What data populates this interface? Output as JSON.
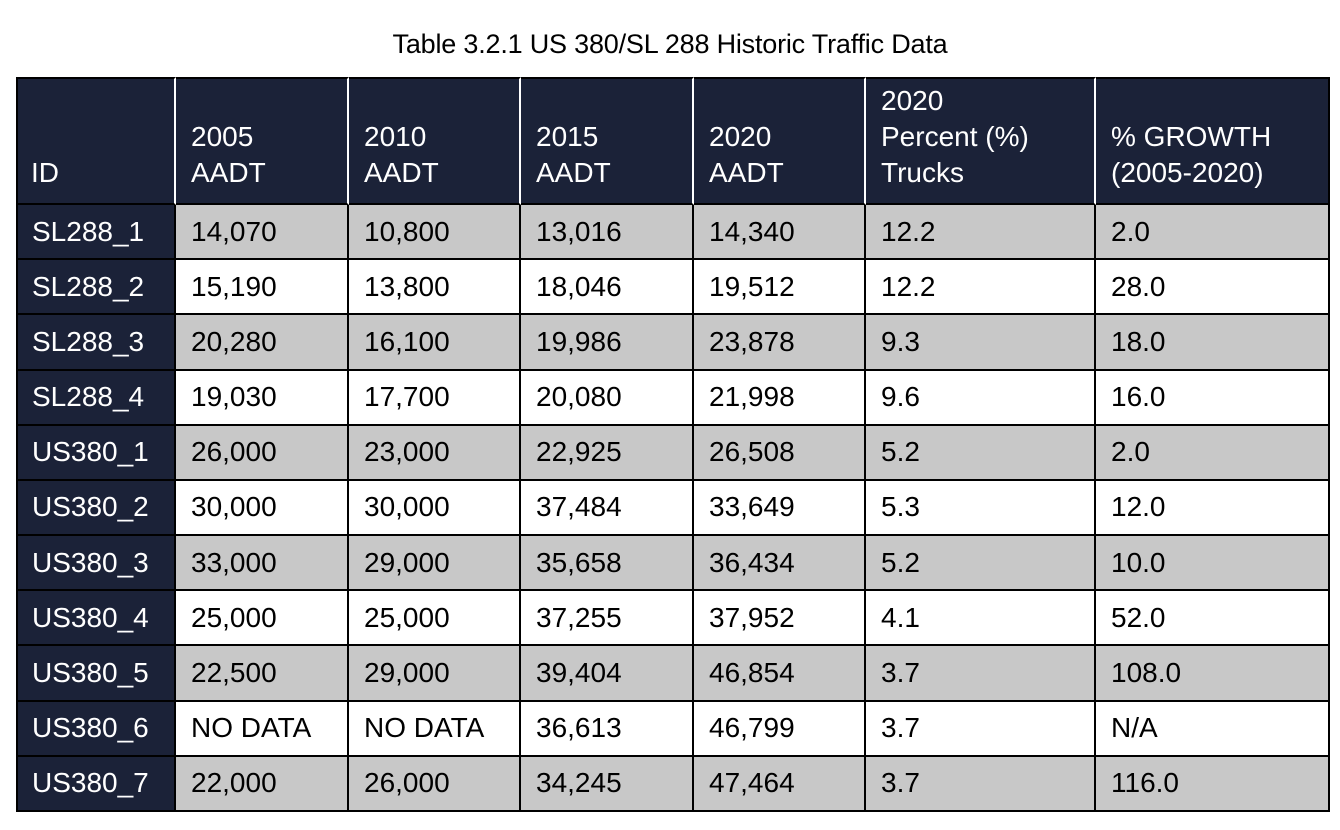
{
  "caption": "Table 3.2.1 US 380/SL 288 Historic Traffic Data",
  "headers": [
    [
      "ID"
    ],
    [
      "2005",
      "AADT"
    ],
    [
      "2010",
      "AADT"
    ],
    [
      "2015",
      "AADT"
    ],
    [
      "2020",
      "AADT"
    ],
    [
      "2020",
      "Percent (%)",
      "Trucks"
    ],
    [
      "% GROWTH",
      "(2005-2020)"
    ]
  ],
  "rows": [
    [
      "SL288_1",
      "14,070",
      "10,800",
      "13,016",
      "14,340",
      "12.2",
      "2.0"
    ],
    [
      "SL288_2",
      "15,190",
      "13,800",
      "18,046",
      "19,512",
      "12.2",
      "28.0"
    ],
    [
      "SL288_3",
      "20,280",
      "16,100",
      "19,986",
      "23,878",
      "9.3",
      "18.0"
    ],
    [
      "SL288_4",
      "19,030",
      "17,700",
      "20,080",
      "21,998",
      "9.6",
      "16.0"
    ],
    [
      "US380_1",
      "26,000",
      "23,000",
      "22,925",
      "26,508",
      "5.2",
      "2.0"
    ],
    [
      "US380_2",
      "30,000",
      "30,000",
      "37,484",
      "33,649",
      "5.3",
      "12.0"
    ],
    [
      "US380_3",
      "33,000",
      "29,000",
      "35,658",
      "36,434",
      "5.2",
      "10.0"
    ],
    [
      "US380_4",
      "25,000",
      "25,000",
      "37,255",
      "37,952",
      "4.1",
      "52.0"
    ],
    [
      "US380_5",
      "22,500",
      "29,000",
      "39,404",
      "46,854",
      "3.7",
      "108.0"
    ],
    [
      "US380_6",
      "NO DATA",
      "NO DATA",
      "36,613",
      "46,799",
      "3.7",
      "N/A"
    ],
    [
      "US380_7",
      "22,000",
      "26,000",
      "34,245",
      "47,464",
      "3.7",
      "116.0"
    ]
  ],
  "colors": {
    "header_bg": "#1b2238",
    "id_bg": "#1b2238",
    "shaded_row": "#c8c8c8",
    "plain_row": "#ffffff"
  }
}
